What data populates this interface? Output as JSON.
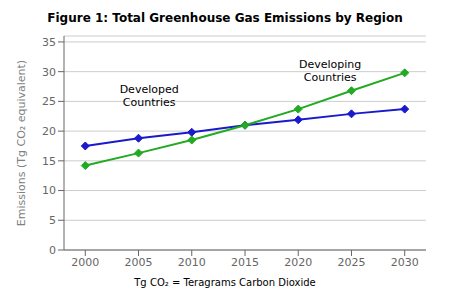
{
  "chart_data": {
    "type": "line",
    "title": "Figure 1: Total Greenhouse Gas Emissions by Region",
    "ylabel": "Emissions (Tg CO₂ equivalent)",
    "note": "Tg CO₂ = Teragrams Carbon Dioxide",
    "xlim": [
      1998,
      2032
    ],
    "xticks": [
      2000,
      2005,
      2010,
      2015,
      2020,
      2025,
      2030
    ],
    "ylim": [
      0,
      36
    ],
    "yticks": [
      0,
      5,
      10,
      15,
      20,
      25,
      30,
      35
    ],
    "grid": true,
    "marker": "diamond",
    "x": [
      2000,
      2005,
      2010,
      2015,
      2020,
      2025,
      2030
    ],
    "series": [
      {
        "color": "#1a1acc",
        "values": [
          17.5,
          18.8,
          19.8,
          21.0,
          21.9,
          22.9,
          23.7
        ]
      },
      {
        "color": "#22aa22",
        "values": [
          14.2,
          16.3,
          18.5,
          21.0,
          23.7,
          26.8,
          29.8
        ]
      }
    ],
    "annotations": [
      {
        "text": [
          "Developed",
          "Countries"
        ],
        "x": 2006,
        "y": 23.5
      },
      {
        "text": [
          "Developing",
          "Countries"
        ],
        "x": 2023,
        "y": 27.8
      }
    ]
  }
}
